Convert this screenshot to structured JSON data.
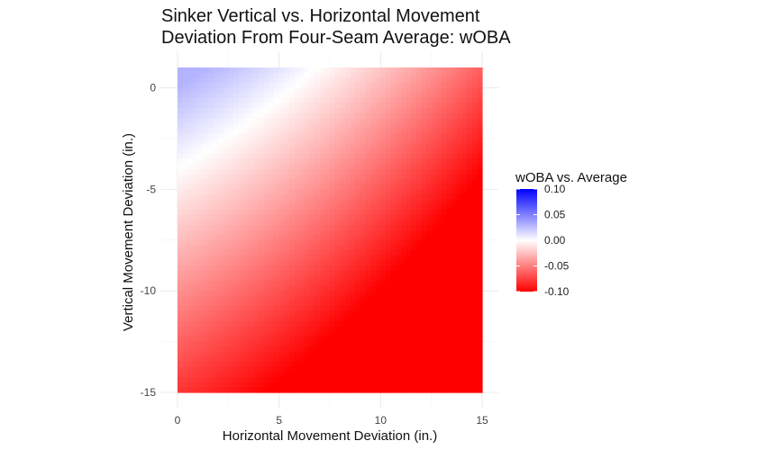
{
  "chart_data": {
    "type": "heatmap",
    "title_lines": [
      "Sinker Vertical vs. Horizontal Movement",
      "Deviation From Four-Seam Average: wOBA"
    ],
    "xlabel": "Horizontal Movement Deviation (in.)",
    "ylabel": "Vertical Movement Deviation (in.)",
    "xlim": [
      0,
      15
    ],
    "ylim": [
      -15,
      1
    ],
    "x_ticks": [
      0,
      5,
      10,
      15
    ],
    "y_ticks": [
      0,
      -5,
      -10,
      -15
    ],
    "x_tick_labels": [
      "0",
      "5",
      "10",
      "15"
    ],
    "y_tick_labels": [
      "0",
      "-5",
      "-10",
      "-15"
    ],
    "grid": true,
    "legend": {
      "title": "wOBA vs. Average",
      "placement": "right",
      "range": [
        -0.1,
        0.1
      ],
      "breaks": [
        0.1,
        0.05,
        0,
        -0.05,
        -0.1
      ],
      "labels": [
        "0.10",
        "0.05",
        "0.00",
        "-0.05",
        "-0.10"
      ],
      "colors": {
        "high": "#0000ff",
        "mid": "#ffffff",
        "low": "#ff0000"
      }
    },
    "surface_samples": [
      {
        "x": 0,
        "y": 1,
        "value": 0.03
      },
      {
        "x": 0,
        "y": -4,
        "value": 0.0
      },
      {
        "x": 0,
        "y": -15,
        "value": -0.04
      },
      {
        "x": 10,
        "y": 1,
        "value": 0.0
      },
      {
        "x": 15,
        "y": 1,
        "value": -0.03
      },
      {
        "x": 15,
        "y": -15,
        "value": -0.1
      },
      {
        "x": 7.5,
        "y": -7,
        "value": -0.05
      }
    ]
  }
}
